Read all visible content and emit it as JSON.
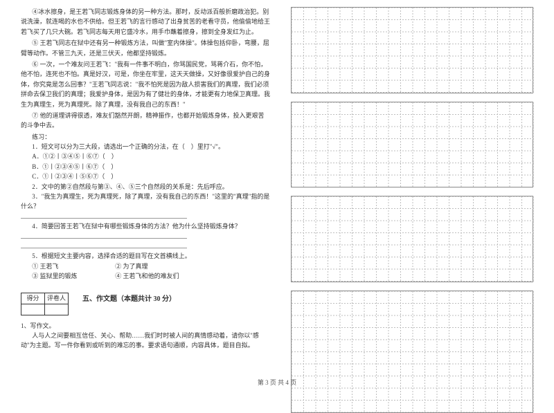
{
  "left": {
    "p4": "④冰水擦身，是王若飞同志锻炼身体的另一种方法。那时，反动派百般折磨政治犯。别说洗澡，就连喝的水也不供给。但王若飞的言行感动了出身贫苦的老看守员，他偷偷地给王若飞买了几只大碗。若飞同志每天用它盛冷水，用手巾蘸着擦身，擦到全身发红为止。",
    "p5": "⑤ 王若飞同志在狱中还有另一种锻炼方法，叫做\"室内体操\"。体操包括仰卧，弯腰，屈臂等动作。不管三九天，还是三伏天，他都坚持锻炼。",
    "p6": "⑥ 一次，一个难友问王若飞：\"我有一件事不明白，你骂国民党，骂蒋介石，你不怕，他不怕，连死也不怕。真是好汉，可是，你坐在牢里，这天天做操，又好像很爱护自己的身体，你究竟是怎么回事？\"王若飞同志说：\"我不怕死是因为敌人损害我们的真理，我们必须拼命去保卫我们的真理；我爱护身体，是因为有了健壮的身体，才能更有力地保卫真理。我生为真理生，死为真理死。除了真理，没有我自己的东西！\"",
    "p7": "⑦ 他的道理讲得很透，难友们豁然开朗，精神振作，也都开始锻炼身体，投入更艰苦的斗争中去。",
    "ex_label": "练习：",
    "q1": "1．短文可以分为三大段，请选出一个正确的分法，在（　）里打\"√\"。",
    "q1a": "A．①②丨③④⑤丨⑥⑦（　）",
    "q1b": "B．①丨②③④⑤丨⑥⑦（　）",
    "q1c": "C．①丨②③④丨⑤⑥⑦（　）",
    "q2": "2．文中的第②自然段与第③、④、⑤三个自然段的关系是：先后呼应。",
    "q3": "3．\"我生为真理生，死为真理死，除了真理，没有我自己的东西！\"这里的\"真理\"指的是什么？",
    "q4": "4．简要回答王若飞在狱中有哪些锻炼身体的方法？他为什么坚持锻炼身体？",
    "q5": "5．根据短文主要内容，选择合适的题目写在文首横线上。",
    "q5a": "① 王若飞",
    "q5b": "② 为了真理",
    "q5c": "③ 监狱里的锻炼",
    "q5d": "④ 王若飞和他的难友们",
    "score_h1": "得分",
    "score_h2": "评卷人",
    "section5": "五、作文题（本题共计 30 分）",
    "w1": "1、写作文。",
    "w2": "人与人之间要相互信任、关心、帮助……我们时时被人间的真情感动着，请你以\"感动\"为主题。写一件你看到或听到的难忘的事。要求语句通顺，内容具体，题目自拟。"
  },
  "grid": {
    "cols": 20,
    "cell": 17.5,
    "heights": [
      7,
      7,
      7,
      10
    ],
    "line_color": "#bdbdbd",
    "dash": "2,2",
    "border_color": "#888888"
  },
  "footer": "第 3 页 共 4 页",
  "colors": {
    "text": "#333333",
    "bg": "#ffffff"
  }
}
